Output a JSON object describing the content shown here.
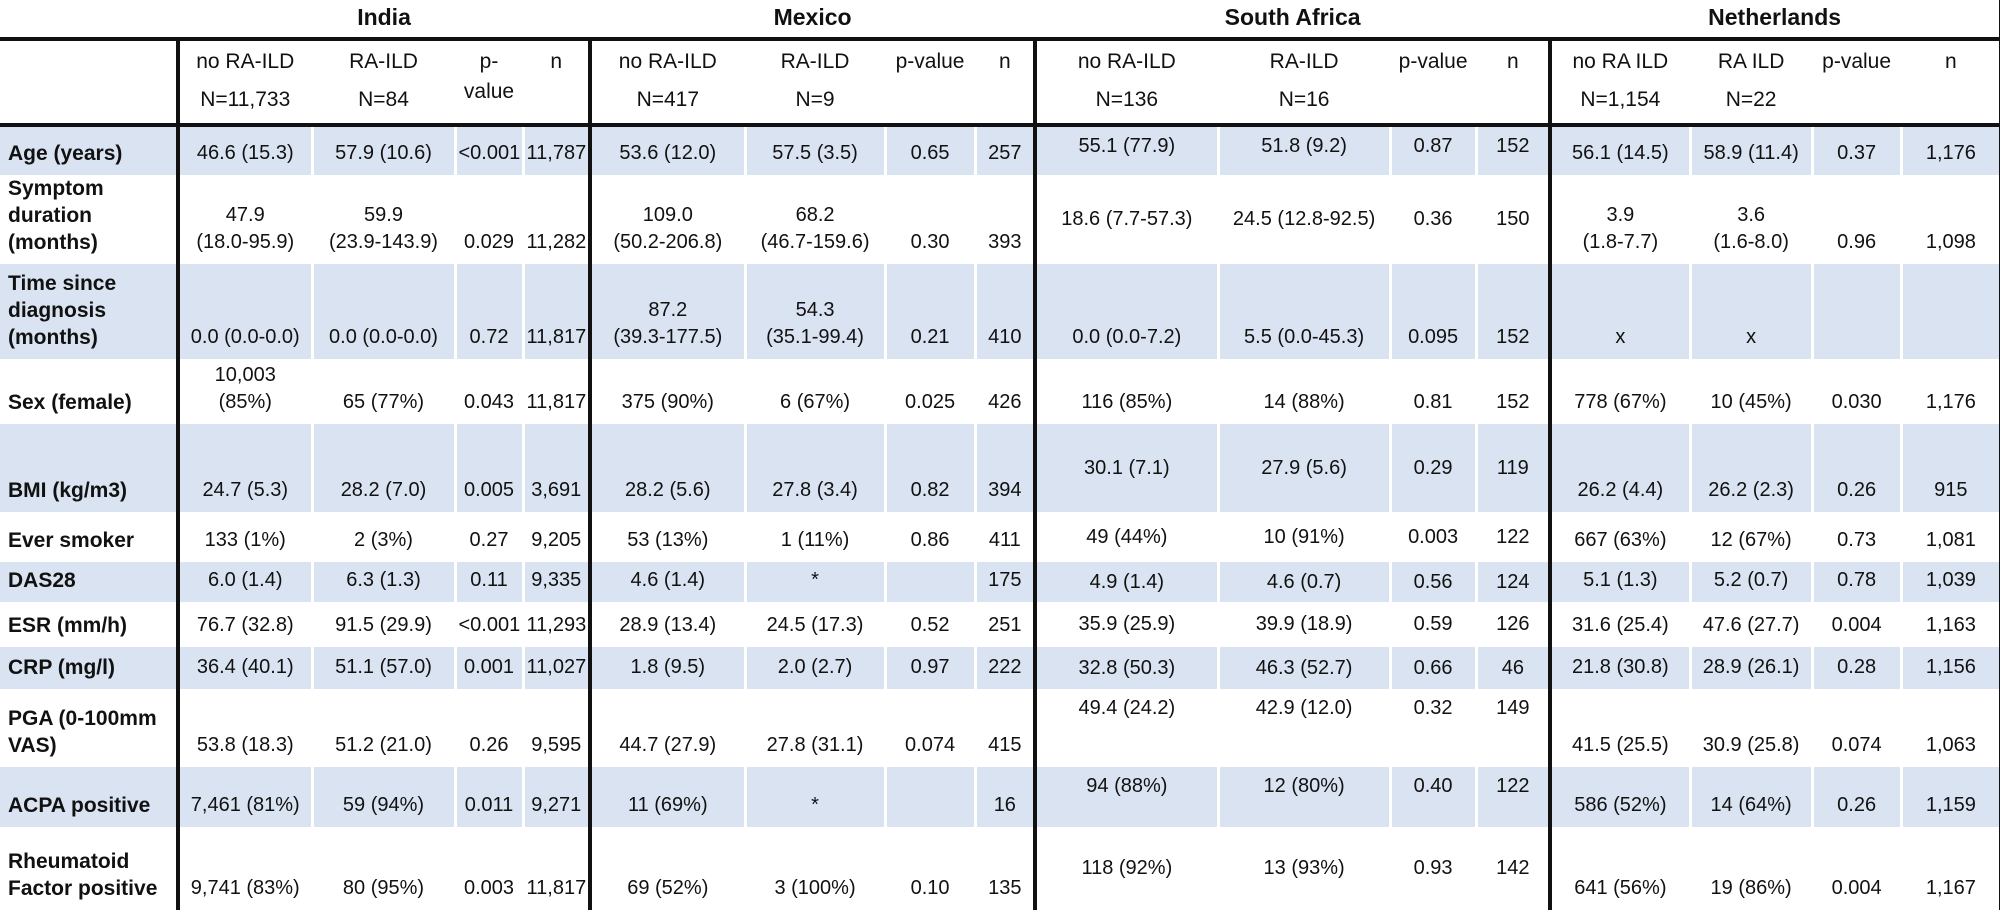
{
  "table": {
    "countries": [
      {
        "name": "India",
        "col1": "no RA-ILD",
        "col2": "RA-ILD",
        "n1": "N=11,733",
        "n2": "N=84",
        "p": "p-value",
        "n": "n"
      },
      {
        "name": "Mexico",
        "col1": "no RA-ILD",
        "col2": "RA-ILD",
        "n1": "N=417",
        "n2": "N=9",
        "p": "p-value",
        "n": "n"
      },
      {
        "name": "South Africa",
        "col1": "no RA-ILD",
        "col2": "RA-ILD",
        "n1": "N=136",
        "n2": "N=16",
        "p": "p-value",
        "n": "n"
      },
      {
        "name": "Netherlands",
        "col1": "no RA ILD",
        "col2": "RA ILD",
        "n1": "N=1,154",
        "n2": "N=22",
        "p": "p-value",
        "n": "n"
      }
    ],
    "rows": [
      {
        "label": "Age (years)",
        "cells": [
          [
            "46.6 (15.3)",
            "57.9 (10.6)",
            "<0.001",
            "11,787"
          ],
          [
            "53.6 (12.0)",
            "57.5 (3.5)",
            "0.65",
            "257"
          ],
          [
            "55.1 (77.9)",
            "51.8 (9.2)",
            "0.87",
            "152"
          ],
          [
            "56.1 (14.5)",
            "58.9 (11.4)",
            "0.37",
            "1,176"
          ]
        ]
      },
      {
        "label": "Symptom duration (months)",
        "cells": [
          [
            "47.9\n(18.0-95.9)",
            "59.9\n(23.9-143.9)",
            "0.029",
            "11,282"
          ],
          [
            "109.0\n(50.2-206.8)",
            "68.2\n(46.7-159.6)",
            "0.30",
            "393"
          ],
          [
            "18.6 (7.7-57.3)",
            "24.5 (12.8-92.5)",
            "0.36",
            "150"
          ],
          [
            "3.9\n(1.8-7.7)",
            "3.6\n(1.6-8.0)",
            "0.96",
            "1,098"
          ]
        ]
      },
      {
        "label": "Time since diagnosis (months)",
        "cells": [
          [
            "0.0 (0.0-0.0)",
            "0.0 (0.0-0.0)",
            "0.72",
            "11,817"
          ],
          [
            "87.2\n(39.3-177.5)",
            "54.3\n(35.1-99.4)",
            "0.21",
            "410"
          ],
          [
            "0.0 (0.0-7.2)",
            "5.5 (0.0-45.3)",
            "0.095",
            "152"
          ],
          [
            "x",
            "x",
            "",
            ""
          ]
        ]
      },
      {
        "label": "Sex (female)",
        "cells": [
          [
            "10,003\n(85%)",
            "65 (77%)",
            "0.043",
            "11,817"
          ],
          [
            "375 (90%)",
            "6 (67%)",
            "0.025",
            "426"
          ],
          [
            "116 (85%)",
            "14 (88%)",
            "0.81",
            "152"
          ],
          [
            "778 (67%)",
            "10 (45%)",
            "0.030",
            "1,176"
          ]
        ]
      },
      {
        "label": "BMI  (kg/m3)",
        "cells": [
          [
            "24.7 (5.3)",
            "28.2 (7.0)",
            "0.005",
            "3,691"
          ],
          [
            "28.2 (5.6)",
            "27.8 (3.4)",
            "0.82",
            "394"
          ],
          [
            "30.1 (7.1)",
            "27.9 (5.6)",
            "0.29",
            "119"
          ],
          [
            "26.2 (4.4)",
            "26.2 (2.3)",
            "0.26",
            "915"
          ]
        ]
      },
      {
        "label": "Ever smoker",
        "cells": [
          [
            "133 (1%)",
            "2 (3%)",
            "0.27",
            "9,205"
          ],
          [
            "53 (13%)",
            "1 (11%)",
            "0.86",
            "411"
          ],
          [
            "49 (44%)",
            "10 (91%)",
            "0.003",
            "122"
          ],
          [
            "667 (63%)",
            "12 (67%)",
            "0.73",
            "1,081"
          ]
        ]
      },
      {
        "label": "DAS28",
        "cells": [
          [
            "6.0 (1.4)",
            "6.3 (1.3)",
            "0.11",
            "9,335"
          ],
          [
            "4.6 (1.4)",
            "*",
            "",
            "175"
          ],
          [
            "4.9 (1.4)",
            "4.6 (0.7)",
            "0.56",
            "124"
          ],
          [
            "5.1 (1.3)",
            "5.2 (0.7)",
            "0.78",
            "1,039"
          ]
        ]
      },
      {
        "label": "ESR (mm/h)",
        "cells": [
          [
            "76.7 (32.8)",
            "91.5 (29.9)",
            "<0.001",
            "11,293"
          ],
          [
            "28.9 (13.4)",
            "24.5 (17.3)",
            "0.52",
            "251"
          ],
          [
            "35.9 (25.9)",
            "39.9 (18.9)",
            "0.59",
            "126"
          ],
          [
            "31.6 (25.4)",
            "47.6 (27.7)",
            "0.004",
            "1,163"
          ]
        ]
      },
      {
        "label": "CRP (mg/l)",
        "cells": [
          [
            "36.4 (40.1)",
            "51.1 (57.0)",
            "0.001",
            "11,027"
          ],
          [
            "1.8 (9.5)",
            "2.0 (2.7)",
            "0.97",
            "222"
          ],
          [
            "32.8 (50.3)",
            "46.3 (52.7)",
            "0.66",
            "46"
          ],
          [
            "21.8 (30.8)",
            "28.9 (26.1)",
            "0.28",
            "1,156"
          ]
        ]
      },
      {
        "label": "PGA (0-100mm VAS)",
        "cells": [
          [
            "53.8 (18.3)",
            "51.2 (21.0)",
            "0.26",
            "9,595"
          ],
          [
            "44.7 (27.9)",
            "27.8 (31.1)",
            "0.074",
            "415"
          ],
          [
            "49.4 (24.2)",
            "42.9 (12.0)",
            "0.32",
            "149"
          ],
          [
            "41.5 (25.5)",
            "30.9 (25.8)",
            "0.074",
            "1,063"
          ]
        ]
      },
      {
        "label": "ACPA positive",
        "cells": [
          [
            "7,461 (81%)",
            "59 (94%)",
            "0.011",
            "9,271"
          ],
          [
            "11 (69%)",
            "*",
            "",
            "16"
          ],
          [
            "94 (88%)",
            "12 (80%)",
            "0.40",
            "122"
          ],
          [
            "586 (52%)",
            "14 (64%)",
            "0.26",
            "1,159"
          ]
        ]
      },
      {
        "label": "Rheumatoid Factor positive",
        "cells": [
          [
            "9,741 (83%)",
            "80 (95%)",
            "0.003",
            "11,817"
          ],
          [
            "69 (52%)",
            "3 (100%)",
            "0.10",
            "135"
          ],
          [
            "118 (92%)",
            "13 (93%)",
            "0.93",
            "142"
          ],
          [
            "641 (56%)",
            "19 (86%)",
            "0.004",
            "1,167"
          ]
        ]
      }
    ]
  }
}
